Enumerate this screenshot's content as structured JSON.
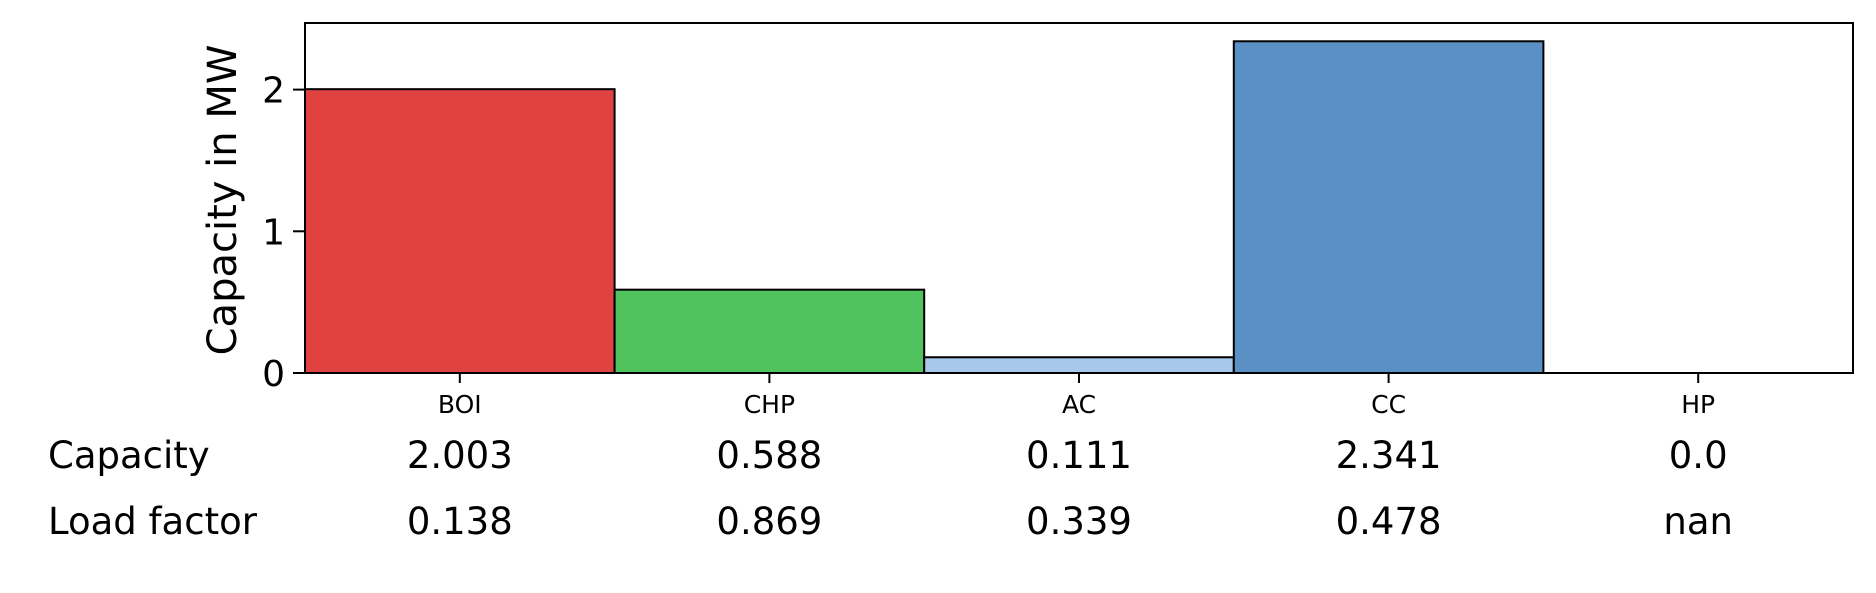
{
  "chart_data": {
    "type": "bar",
    "categories": [
      "BOI",
      "CHP",
      "AC",
      "CC",
      "HP"
    ],
    "values": [
      2.003,
      0.588,
      0.111,
      2.341,
      0.0
    ],
    "colors": [
      "#e04141",
      "#50c35f",
      "#a8c8ea",
      "#5b90c4",
      "#ffffff"
    ],
    "title": "",
    "xlabel": "",
    "ylabel": "Capacity in MW",
    "ylim": [
      0,
      2.47
    ],
    "yticks": [
      0,
      1,
      2
    ],
    "grid": false,
    "legend": "none"
  },
  "table": {
    "rows": [
      {
        "label": "Capacity",
        "cells": [
          "2.003",
          "0.588",
          "0.111",
          "2.341",
          "0.0"
        ]
      },
      {
        "label": "Load factor",
        "cells": [
          "0.138",
          "0.869",
          "0.339",
          "0.478",
          "nan"
        ]
      }
    ]
  }
}
